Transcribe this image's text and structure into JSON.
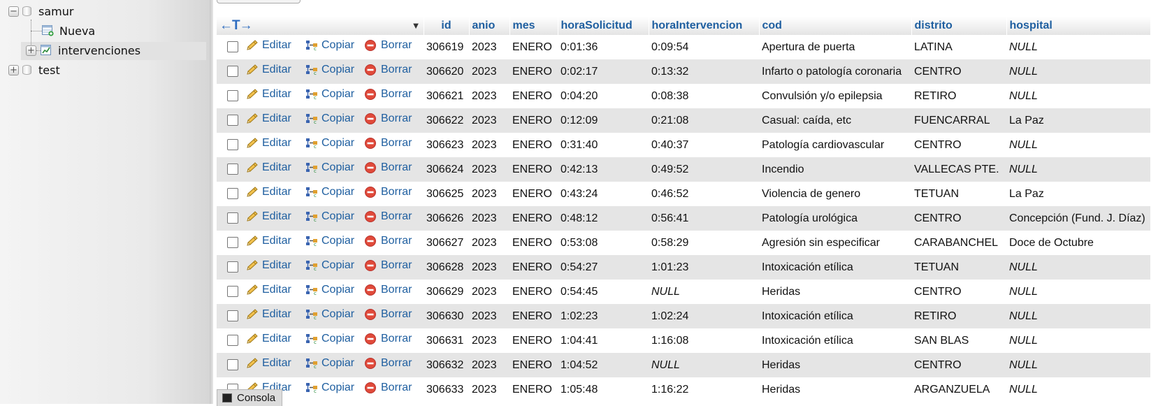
{
  "navigation": {
    "items": [
      {
        "label": "samur",
        "toggle": "−"
      },
      {
        "label": "Nueva"
      },
      {
        "label": "intervenciones",
        "toggle": "+"
      },
      {
        "label": "test",
        "toggle": "+"
      }
    ]
  },
  "table": {
    "header_arrows": "←T→",
    "columns": [
      "id",
      "anio",
      "mes",
      "horaSolicitud",
      "horaIntervencion",
      "cod",
      "distrito",
      "hospital"
    ],
    "actions": {
      "edit": "Editar",
      "copy": "Copiar",
      "delete": "Borrar"
    },
    "rows": [
      {
        "id": "306619",
        "anio": "2023",
        "mes": "ENERO",
        "horaSolicitud": "0:01:36",
        "horaIntervencion": "0:09:54",
        "cod": "Apertura de puerta",
        "distrito": "LATINA",
        "hospital": "NULL"
      },
      {
        "id": "306620",
        "anio": "2023",
        "mes": "ENERO",
        "horaSolicitud": "0:02:17",
        "horaIntervencion": "0:13:32",
        "cod": "Infarto o patología coronaria",
        "distrito": "CENTRO",
        "hospital": "NULL"
      },
      {
        "id": "306621",
        "anio": "2023",
        "mes": "ENERO",
        "horaSolicitud": "0:04:20",
        "horaIntervencion": "0:08:38",
        "cod": "Convulsión y/o epilepsia",
        "distrito": "RETIRO",
        "hospital": "NULL"
      },
      {
        "id": "306622",
        "anio": "2023",
        "mes": "ENERO",
        "horaSolicitud": "0:12:09",
        "horaIntervencion": "0:21:08",
        "cod": "Casual: caída, etc",
        "distrito": "FUENCARRAL",
        "hospital": "La Paz"
      },
      {
        "id": "306623",
        "anio": "2023",
        "mes": "ENERO",
        "horaSolicitud": "0:31:40",
        "horaIntervencion": "0:40:37",
        "cod": "Patología cardiovascular",
        "distrito": "CENTRO",
        "hospital": "NULL"
      },
      {
        "id": "306624",
        "anio": "2023",
        "mes": "ENERO",
        "horaSolicitud": "0:42:13",
        "horaIntervencion": "0:49:52",
        "cod": "Incendio",
        "distrito": "VALLECAS PTE.",
        "hospital": "NULL"
      },
      {
        "id": "306625",
        "anio": "2023",
        "mes": "ENERO",
        "horaSolicitud": "0:43:24",
        "horaIntervencion": "0:46:52",
        "cod": "Violencia de genero",
        "distrito": "TETUAN",
        "hospital": "La Paz"
      },
      {
        "id": "306626",
        "anio": "2023",
        "mes": "ENERO",
        "horaSolicitud": "0:48:12",
        "horaIntervencion": "0:56:41",
        "cod": "Patología urológica",
        "distrito": "CENTRO",
        "hospital": "Concepción (Fund. J. Díaz)"
      },
      {
        "id": "306627",
        "anio": "2023",
        "mes": "ENERO",
        "horaSolicitud": "0:53:08",
        "horaIntervencion": "0:58:29",
        "cod": "Agresión sin especificar",
        "distrito": "CARABANCHEL",
        "hospital": "Doce de Octubre"
      },
      {
        "id": "306628",
        "anio": "2023",
        "mes": "ENERO",
        "horaSolicitud": "0:54:27",
        "horaIntervencion": "1:01:23",
        "cod": "Intoxicación etílica",
        "distrito": "TETUAN",
        "hospital": "NULL"
      },
      {
        "id": "306629",
        "anio": "2023",
        "mes": "ENERO",
        "horaSolicitud": "0:54:45",
        "horaIntervencion": "NULL",
        "cod": "Heridas",
        "distrito": "CENTRO",
        "hospital": "NULL"
      },
      {
        "id": "306630",
        "anio": "2023",
        "mes": "ENERO",
        "horaSolicitud": "1:02:23",
        "horaIntervencion": "1:02:24",
        "cod": "Intoxicación etílica",
        "distrito": "RETIRO",
        "hospital": "NULL"
      },
      {
        "id": "306631",
        "anio": "2023",
        "mes": "ENERO",
        "horaSolicitud": "1:04:41",
        "horaIntervencion": "1:16:08",
        "cod": "Intoxicación etílica",
        "distrito": "SAN BLAS",
        "hospital": "NULL"
      },
      {
        "id": "306632",
        "anio": "2023",
        "mes": "ENERO",
        "horaSolicitud": "1:04:52",
        "horaIntervencion": "NULL",
        "cod": "Heridas",
        "distrito": "CENTRO",
        "hospital": "NULL"
      },
      {
        "id": "306633",
        "anio": "2023",
        "mes": "ENERO",
        "horaSolicitud": "1:05:48",
        "horaIntervencion": "1:16:22",
        "cod": "Heridas",
        "distrito": "ARGANZUELA",
        "hospital": "NULL"
      }
    ]
  },
  "console": {
    "label": "Consola"
  }
}
